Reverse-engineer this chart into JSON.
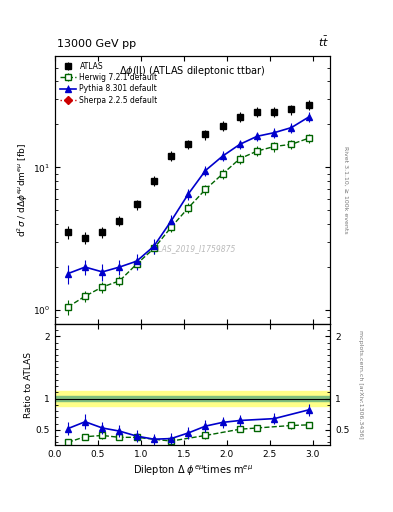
{
  "title_top": "13000 GeV pp",
  "title_top_right": "$t\\bar{t}$",
  "plot_title": "$\\Delta\\phi$(ll) (ATLAS dileptonic ttbar)",
  "watermark": "ATLAS_2019_I1759875",
  "right_label_top": "Rivet 3.1.10, ≥ 100k events",
  "right_label_bot": "mcplots.cern.ch [arXiv:1306.3436]",
  "atlas_x": [
    0.15,
    0.35,
    0.55,
    0.75,
    0.95,
    1.15,
    1.35,
    1.55,
    1.75,
    1.95,
    2.15,
    2.35,
    2.55,
    2.75,
    2.95
  ],
  "atlas_y": [
    3.5,
    3.2,
    3.5,
    4.2,
    5.5,
    8.0,
    12.0,
    14.5,
    17.0,
    19.5,
    22.5,
    24.5,
    24.5,
    25.5,
    27.5
  ],
  "atlas_yerr": [
    0.35,
    0.3,
    0.3,
    0.35,
    0.45,
    0.65,
    0.95,
    1.15,
    1.35,
    1.55,
    1.75,
    1.95,
    1.95,
    2.05,
    2.2
  ],
  "herwig_x": [
    0.15,
    0.35,
    0.55,
    0.75,
    0.95,
    1.15,
    1.35,
    1.55,
    1.75,
    1.95,
    2.15,
    2.35,
    2.55,
    2.75,
    2.95
  ],
  "herwig_y": [
    1.05,
    1.25,
    1.45,
    1.6,
    2.1,
    2.7,
    3.8,
    5.2,
    7.0,
    9.0,
    11.5,
    13.0,
    14.0,
    14.5,
    16.0
  ],
  "herwig_yerr": [
    0.12,
    0.12,
    0.13,
    0.13,
    0.17,
    0.22,
    0.3,
    0.42,
    0.55,
    0.7,
    0.88,
    1.0,
    1.1,
    1.15,
    1.25
  ],
  "pythia_x": [
    0.15,
    0.35,
    0.55,
    0.75,
    0.95,
    1.15,
    1.35,
    1.55,
    1.75,
    1.95,
    2.15,
    2.35,
    2.55,
    2.75,
    2.95
  ],
  "pythia_y": [
    1.8,
    2.0,
    1.85,
    2.0,
    2.2,
    2.8,
    4.2,
    6.5,
    9.5,
    12.0,
    14.5,
    16.5,
    17.5,
    19.0,
    22.5
  ],
  "pythia_yerr": [
    0.28,
    0.25,
    0.24,
    0.24,
    0.28,
    0.33,
    0.47,
    0.6,
    0.8,
    0.95,
    1.15,
    1.3,
    1.38,
    1.5,
    1.75
  ],
  "ratio_pythia_x": [
    0.15,
    0.35,
    0.55,
    0.75,
    0.95,
    1.15,
    1.35,
    1.55,
    1.75,
    1.95,
    2.15,
    2.55,
    2.95
  ],
  "ratio_pythia_y": [
    0.52,
    0.63,
    0.53,
    0.48,
    0.4,
    0.35,
    0.36,
    0.45,
    0.56,
    0.62,
    0.65,
    0.68,
    0.82
  ],
  "ratio_pythia_yerr": [
    0.1,
    0.12,
    0.1,
    0.09,
    0.09,
    0.09,
    0.09,
    0.09,
    0.09,
    0.09,
    0.09,
    0.09,
    0.09
  ],
  "ratio_herwig_x": [
    0.15,
    0.35,
    0.55,
    0.75,
    0.95,
    1.35,
    1.75,
    2.15,
    2.35,
    2.75,
    2.95
  ],
  "ratio_herwig_y": [
    0.3,
    0.39,
    0.41,
    0.38,
    0.38,
    0.32,
    0.41,
    0.51,
    0.53,
    0.57,
    0.58
  ],
  "ratio_herwig_yerr": [
    0.05,
    0.05,
    0.05,
    0.05,
    0.05,
    0.05,
    0.05,
    0.05,
    0.05,
    0.05,
    0.05
  ],
  "band_green_low": 0.96,
  "band_green_high": 1.04,
  "band_yellow_low": 0.88,
  "band_yellow_high": 1.12,
  "xlim": [
    0,
    3.2
  ],
  "ylim_main": [
    0.8,
    60
  ],
  "ylim_ratio": [
    0.25,
    2.2
  ],
  "yticks_ratio": [
    0.5,
    1.0,
    2.0
  ],
  "color_atlas": "#000000",
  "color_herwig": "#006400",
  "color_pythia": "#0000cc",
  "color_sherpa": "#cc0000",
  "color_band_green": "#7FBF7F",
  "color_band_yellow": "#FFFF88",
  "legend_atlas": "ATLAS",
  "legend_herwig": "Herwig 7.2.1 default",
  "legend_pythia": "Pythia 8.301 default",
  "legend_sherpa": "Sherpa 2.2.5 default"
}
